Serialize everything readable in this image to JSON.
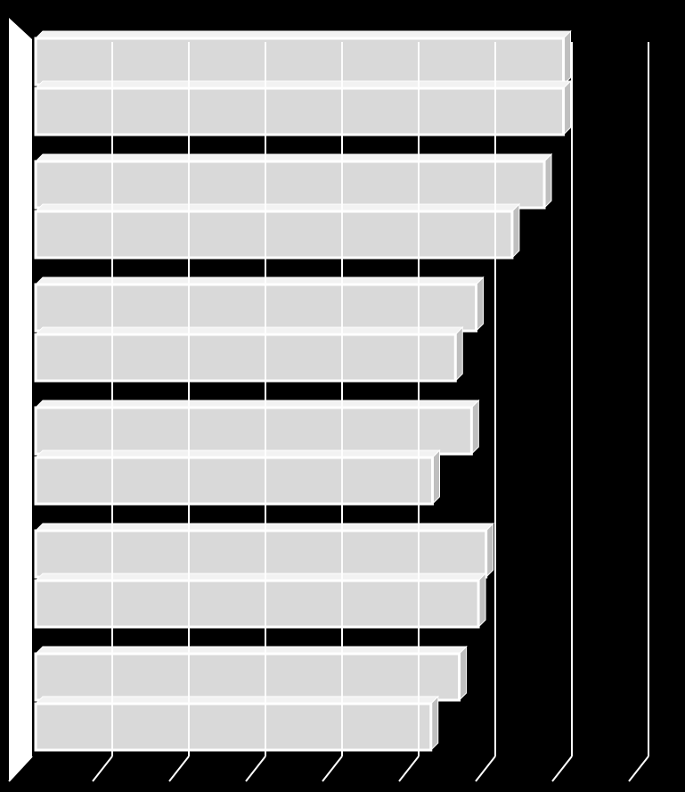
{
  "colors": {
    "background": "#000000",
    "bar_face": "#d9d9d9",
    "bar_top": "#f2f2f2",
    "bar_side": "#bfbfbf",
    "grid": "#ffffff",
    "wall": "#ffffff"
  },
  "chart_data": {
    "type": "bar",
    "orientation": "horizontal",
    "three_d": true,
    "title": "",
    "xlabel": "",
    "ylabel": "",
    "grid": true,
    "legend": "none",
    "gridline_count": 8,
    "categories": [
      "",
      "",
      "",
      "",
      "",
      ""
    ],
    "series": [
      {
        "values": [
          6.89,
          6.64,
          5.75,
          5.69,
          5.88,
          5.53
        ]
      },
      {
        "values": [
          6.89,
          6.22,
          5.48,
          5.18,
          5.78,
          5.16
        ]
      }
    ]
  }
}
